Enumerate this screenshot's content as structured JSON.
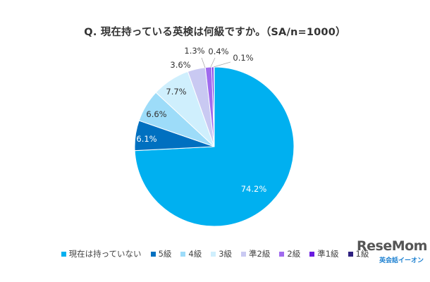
{
  "chart_data": {
    "type": "pie",
    "title": "Q. 現在持っている英検は何級ですか。（SA/n=1000）",
    "start_angle_deg": 0,
    "direction": "clockwise",
    "slices": [
      {
        "name": "現在は持っていない",
        "value": 74.2,
        "label": "74.2%",
        "color": "#00B0F0"
      },
      {
        "name": "5級",
        "value": 6.1,
        "label": "6.1%",
        "color": "#0070C0"
      },
      {
        "name": "4級",
        "value": 6.6,
        "label": "6.6%",
        "color": "#9DDCF9"
      },
      {
        "name": "3級",
        "value": 7.7,
        "label": "7.7%",
        "color": "#CFEFFD"
      },
      {
        "name": "準2級",
        "value": 3.6,
        "label": "3.6%",
        "color": "#C9C9F2"
      },
      {
        "name": "2級",
        "value": 1.3,
        "label": "1.3%",
        "color": "#A06BEE"
      },
      {
        "name": "準1級",
        "value": 0.4,
        "label": "0.4%",
        "color": "#6A1BE0"
      },
      {
        "name": "1級",
        "value": 0.1,
        "label": "0.1%",
        "color": "#2F2180"
      }
    ],
    "legend_position": "bottom"
  },
  "watermark": {
    "brand": "ReseMom",
    "sub": "英会話イーオン"
  }
}
